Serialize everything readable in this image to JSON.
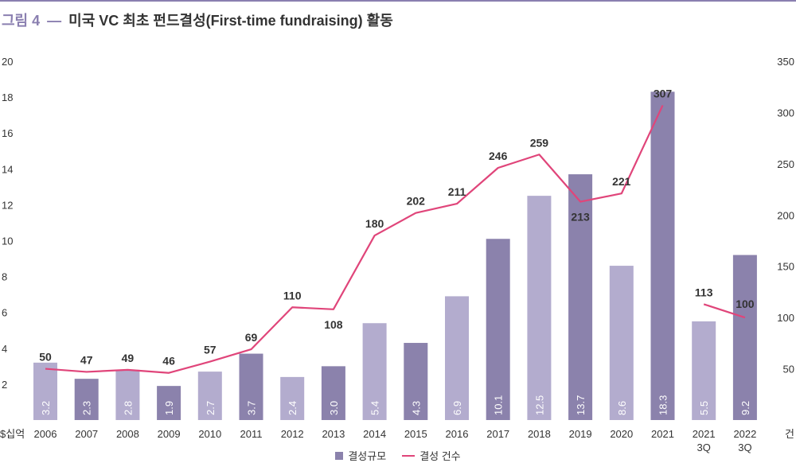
{
  "title": {
    "figure_label": "그림 4",
    "dash": "—",
    "text": "미국 VC 최초 펀드결성(First-time fundraising) 활동"
  },
  "colors": {
    "bar_dark": "#8b82ac",
    "bar_light": "#b3acce",
    "line": "#e0457a",
    "accent": "#8a7fb0"
  },
  "chart_data": {
    "type": "bar",
    "categories": [
      "2006",
      "2007",
      "2008",
      "2009",
      "2010",
      "2011",
      "2012",
      "2013",
      "2014",
      "2015",
      "2016",
      "2017",
      "2018",
      "2019",
      "2020",
      "2021",
      "2021\n3Q",
      "2022\n3Q"
    ],
    "series": [
      {
        "name": "결성규모",
        "type": "bar",
        "axis": "left",
        "values": [
          3.2,
          2.3,
          2.8,
          1.9,
          2.7,
          3.7,
          2.4,
          3.0,
          5.4,
          4.3,
          6.9,
          10.1,
          12.5,
          13.7,
          8.6,
          18.3,
          5.5,
          9.2
        ],
        "labels": [
          "3.2",
          "2.3",
          "2.8",
          "1.9",
          "2.7",
          "3.7",
          "2.4",
          "3.0",
          "5.4",
          "4.3",
          "6.9",
          "10.1",
          "12.5",
          "13.7",
          "8.6",
          "18.3",
          "5.5",
          "9.2"
        ],
        "shades": [
          "light",
          "dark",
          "light",
          "dark",
          "light",
          "dark",
          "light",
          "dark",
          "light",
          "dark",
          "light",
          "dark",
          "light",
          "dark",
          "light",
          "dark",
          "light",
          "dark"
        ]
      },
      {
        "name": "결성 건수",
        "type": "line",
        "axis": "right",
        "values": [
          50,
          47,
          49,
          46,
          57,
          69,
          110,
          108,
          180,
          202,
          211,
          246,
          259,
          213,
          221,
          307,
          113,
          100
        ],
        "labels": [
          "50",
          "47",
          "49",
          "46",
          "57",
          "69",
          "110",
          "108",
          "180",
          "202",
          "211",
          "246",
          "259",
          "213",
          "221",
          "307",
          "113",
          "100"
        ],
        "segments": [
          [
            0,
            15
          ],
          [
            16,
            17
          ]
        ]
      }
    ],
    "left_axis": {
      "unit": "$십억",
      "ylim": [
        0,
        20
      ],
      "ticks": [
        "2",
        "4",
        "6",
        "8",
        "10",
        "12",
        "14",
        "16",
        "18",
        "20"
      ]
    },
    "right_axis": {
      "unit": "건",
      "ylim": [
        0,
        350
      ],
      "ticks": [
        "50",
        "100",
        "150",
        "200",
        "250",
        "300",
        "350"
      ]
    },
    "grid": false,
    "legend_position": "bottom"
  }
}
